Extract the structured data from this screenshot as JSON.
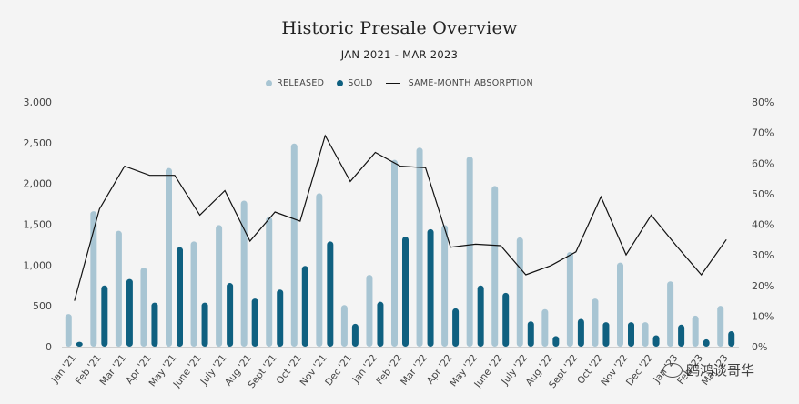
{
  "colors": {
    "released": "#a8c5d3",
    "sold": "#0f6080",
    "absorption": "#111111",
    "axis_text": "#444444"
  },
  "chart_data": {
    "type": "bar",
    "title": "Historic Presale Overview",
    "subtitle": "JAN 2021 - MAR 2023",
    "legend": [
      "RELEASED",
      "SOLD",
      "SAME-MONTH ABSORPTION"
    ],
    "legend_position": "top-center",
    "grid": false,
    "categories": [
      "Jan '21",
      "Feb '21",
      "Mar '21",
      "Apr '21",
      "May '21",
      "June '21",
      "July '21",
      "Aug '21",
      "Sept '21",
      "Oct '21",
      "Nov '21",
      "Dec '21",
      "Jan '22",
      "Feb '22",
      "Mar '22",
      "Apr '22",
      "May '22",
      "June '22",
      "July '22",
      "Aug '22",
      "Sept '22",
      "Oct '22",
      "Nov '22",
      "Dec '22",
      "Jan '23",
      "Feb '23",
      "Mar '23"
    ],
    "series": [
      {
        "name": "RELEASED",
        "kind": "bar",
        "axis": "left",
        "values": [
          400,
          1660,
          1420,
          970,
          2190,
          1290,
          1490,
          1790,
          1590,
          2490,
          1880,
          510,
          880,
          2290,
          2440,
          1490,
          2330,
          1970,
          1340,
          460,
          1160,
          590,
          1030,
          300,
          800,
          380,
          500
        ]
      },
      {
        "name": "SOLD",
        "kind": "bar",
        "axis": "left",
        "values": [
          60,
          750,
          830,
          540,
          1220,
          540,
          780,
          590,
          700,
          990,
          1290,
          280,
          550,
          1350,
          1440,
          470,
          750,
          660,
          310,
          130,
          340,
          300,
          300,
          140,
          270,
          90,
          190
        ]
      },
      {
        "name": "SAME-MONTH ABSORPTION",
        "kind": "line",
        "axis": "right",
        "values": [
          15,
          45,
          59,
          56,
          56,
          43,
          51,
          34.5,
          44,
          41,
          69,
          54,
          63.5,
          59,
          58.5,
          32.5,
          33.5,
          33,
          23.5,
          26.5,
          31,
          49,
          30,
          43,
          33,
          23.5,
          35
        ]
      }
    ],
    "yticks_left": [
      "0",
      "500",
      "1,000",
      "1,500",
      "2,000",
      "2,500",
      "3,000"
    ],
    "yticks_right": [
      "0%",
      "10%",
      "20%",
      "30%",
      "40%",
      "50%",
      "60%",
      "70%",
      "80%"
    ],
    "ylim_left": [
      0,
      3000
    ],
    "ylim_right": [
      0,
      80
    ]
  },
  "watermark": {
    "text": "鸥鸿谈哥华"
  }
}
